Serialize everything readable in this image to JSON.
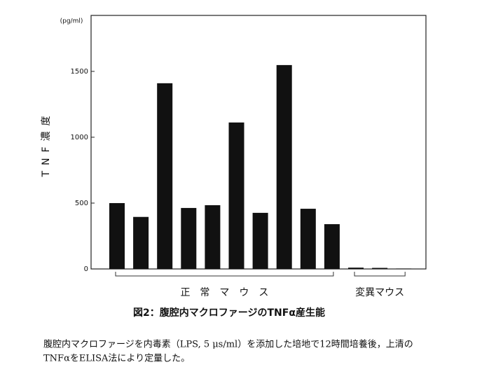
{
  "chart_data": {
    "type": "bar",
    "unit_label": "(pg/ml)",
    "y_label": "TNF濃度",
    "categories": [
      null,
      null,
      null,
      null,
      null,
      null,
      null,
      null,
      null,
      null,
      null,
      null,
      null
    ],
    "values": [
      500,
      395,
      1410,
      463,
      484,
      1112,
      426,
      1548,
      457,
      340,
      10,
      8,
      3
    ],
    "color": "#111111",
    "ylim": [
      0,
      1925
    ],
    "yticks": [
      0,
      500,
      1000,
      1500
    ],
    "groups": [
      {
        "label": "正　常　マ　ウ　ス",
        "count": 10
      },
      {
        "label": "変異マウス",
        "count": 3
      }
    ],
    "caption": "図2：腹腔内マクロファージのTNFα産生能"
  },
  "text": [
    "腹腔内マクロファージを内毒素（LPS, 5 μs/ml）を添加した培地で12時間培養後，上清の",
    "TNFαをELISA法により定量した。"
  ]
}
